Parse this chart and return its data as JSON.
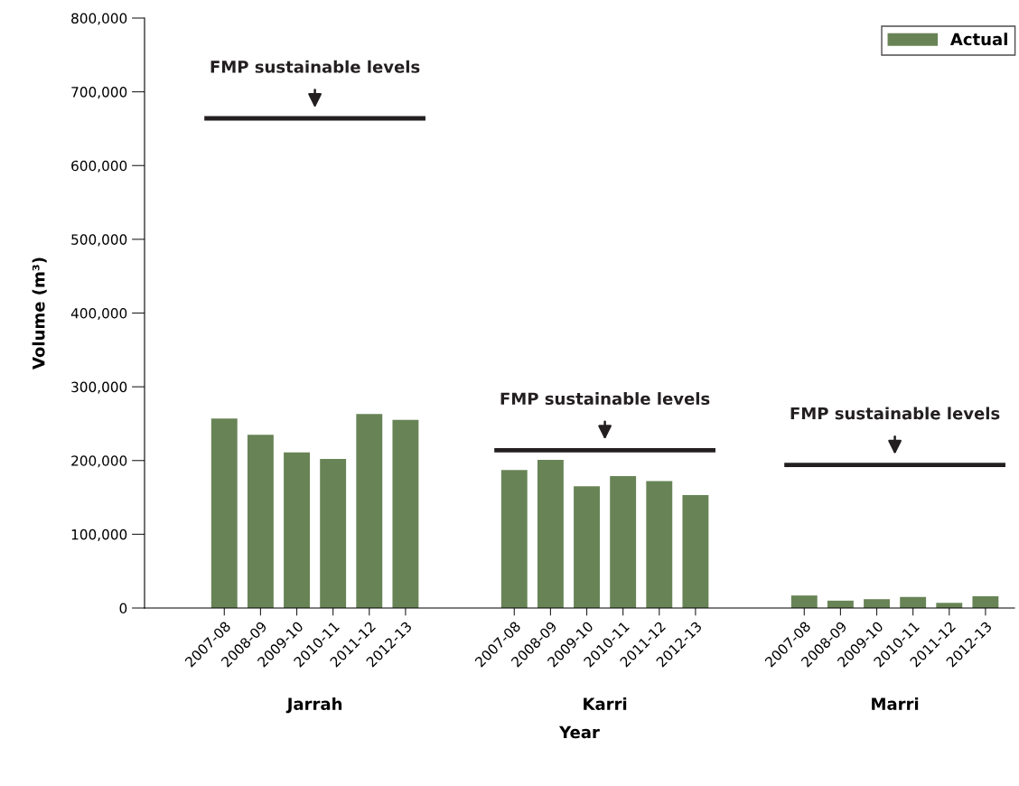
{
  "chart_data": {
    "type": "bar",
    "xlabel": "Year",
    "ylabel": "Volume (m³)",
    "categories": [
      "2007-08",
      "2008-09",
      "2009-10",
      "2010-11",
      "2011-12",
      "2012-13",
      null,
      null,
      "2007-08",
      "2008-09",
      "2009-10",
      "2010-11",
      "2011-12",
      "2012-13",
      null,
      null,
      "2007-08",
      "2008-09",
      "2009-10",
      "2010-11",
      "2011-12",
      "2012-13"
    ],
    "series": [
      {
        "name": "Actual",
        "color": "#688456",
        "values": [
          257000,
          235000,
          211000,
          202000,
          263000,
          255000,
          null,
          null,
          187000,
          201000,
          165000,
          179000,
          172000,
          153000,
          null,
          null,
          17000,
          10000,
          12000,
          15000,
          7000,
          16000
        ]
      }
    ],
    "ref_lines": [
      {
        "axis": "y",
        "value": 664000,
        "label": "FMP sustainable levels",
        "color": "#231f20"
      },
      {
        "axis": "y",
        "value": 214000,
        "label": "FMP sustainable levels",
        "color": "#231f20"
      },
      {
        "axis": "y",
        "value": 194000,
        "label": "FMP sustainable levels",
        "color": "#231f20"
      }
    ],
    "annotations": [
      "Jarrah",
      "Karri",
      "Marri"
    ],
    "ylim": [
      0,
      800000
    ],
    "yticks": [
      {
        "value": 0,
        "label": "0"
      },
      {
        "value": 100000,
        "label": "100,000"
      },
      {
        "value": 200000,
        "label": "200,000"
      },
      {
        "value": 300000,
        "label": "300,000"
      },
      {
        "value": 400000,
        "label": "400,000"
      },
      {
        "value": 500000,
        "label": "500,000"
      },
      {
        "value": 600000,
        "label": "600,000"
      },
      {
        "value": 700000,
        "label": "700,000"
      },
      {
        "value": 800000,
        "label": "800,000"
      }
    ],
    "grid": false,
    "legend": "top right"
  }
}
